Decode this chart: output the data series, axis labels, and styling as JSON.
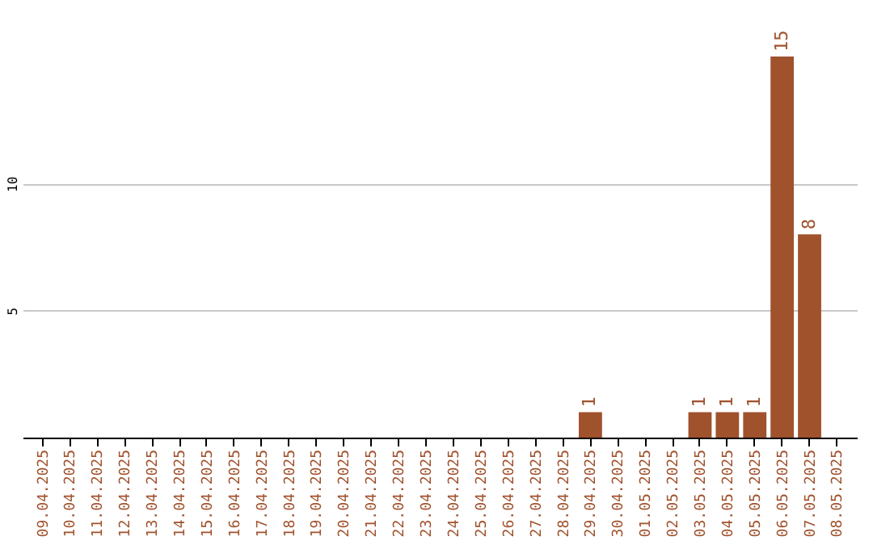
{
  "chart_data": {
    "type": "bar",
    "categories": [
      "09.04.2025",
      "10.04.2025",
      "11.04.2025",
      "12.04.2025",
      "13.04.2025",
      "14.04.2025",
      "15.04.2025",
      "16.04.2025",
      "17.04.2025",
      "18.04.2025",
      "19.04.2025",
      "20.04.2025",
      "21.04.2025",
      "22.04.2025",
      "23.04.2025",
      "24.04.2025",
      "25.04.2025",
      "26.04.2025",
      "27.04.2025",
      "28.04.2025",
      "29.04.2025",
      "30.04.2025",
      "01.05.2025",
      "02.05.2025",
      "03.05.2025",
      "04.05.2025",
      "05.05.2025",
      "06.05.2025",
      "07.05.2025",
      "08.05.2025"
    ],
    "values": [
      0,
      0,
      0,
      0,
      0,
      0,
      0,
      0,
      0,
      0,
      0,
      0,
      0,
      0,
      0,
      0,
      0,
      0,
      0,
      0,
      1,
      0,
      0,
      0,
      1,
      1,
      1,
      15,
      8,
      0
    ],
    "value_labels": [
      null,
      null,
      null,
      null,
      null,
      null,
      null,
      null,
      null,
      null,
      null,
      null,
      null,
      null,
      null,
      null,
      null,
      null,
      null,
      null,
      "1",
      null,
      null,
      null,
      "1",
      "1",
      "1",
      "15",
      "8",
      null
    ],
    "color": "#a0522d",
    "ylim": [
      0,
      15
    ],
    "yticks": [
      5,
      10
    ],
    "grid": "y"
  }
}
